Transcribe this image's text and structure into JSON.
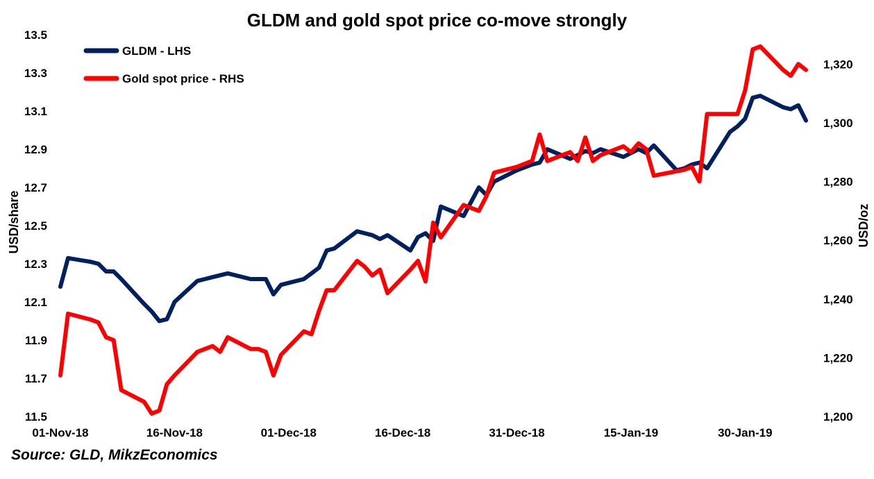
{
  "title": "GLDM and gold spot price co-move strongly",
  "source": "Source: GLD, MikzEconomics",
  "chart_data": {
    "type": "line",
    "title": "GLDM and gold spot price co-move strongly",
    "xlabel": "",
    "ylabel": "USD/share",
    "y2label": "USD/oz",
    "ylim": [
      11.5,
      13.5
    ],
    "y2lim": [
      1200,
      1330
    ],
    "yticks": [
      "11.5",
      "11.7",
      "11.9",
      "12.1",
      "12.3",
      "12.5",
      "12.7",
      "12.9",
      "13.1",
      "13.3",
      "13.5"
    ],
    "y2ticks": [
      "1,200",
      "1,220",
      "1,240",
      "1,260",
      "1,280",
      "1,300",
      "1,320"
    ],
    "xtick_labels": [
      "01-Nov-18",
      "16-Nov-18",
      "01-Dec-18",
      "16-Dec-18",
      "31-Dec-18",
      "15-Jan-19",
      "30-Jan-19"
    ],
    "x_start": "2018-11-01",
    "x_end": "2019-02-07",
    "legend_position": "top-left",
    "grid": false,
    "series": [
      {
        "name": "GLDM - LHS",
        "axis": "left",
        "color": "#002060",
        "points": [
          [
            "2018-11-01",
            12.18
          ],
          [
            "2018-11-02",
            12.33
          ],
          [
            "2018-11-05",
            12.31
          ],
          [
            "2018-11-06",
            12.3
          ],
          [
            "2018-11-07",
            12.26
          ],
          [
            "2018-11-08",
            12.26
          ],
          [
            "2018-11-09",
            12.22
          ],
          [
            "2018-11-12",
            12.09
          ],
          [
            "2018-11-13",
            12.05
          ],
          [
            "2018-11-14",
            12.0
          ],
          [
            "2018-11-15",
            12.01
          ],
          [
            "2018-11-16",
            12.1
          ],
          [
            "2018-11-19",
            12.21
          ],
          [
            "2018-11-20",
            12.22
          ],
          [
            "2018-11-21",
            12.23
          ],
          [
            "2018-11-23",
            12.25
          ],
          [
            "2018-11-26",
            12.22
          ],
          [
            "2018-11-27",
            12.22
          ],
          [
            "2018-11-28",
            12.22
          ],
          [
            "2018-11-29",
            12.14
          ],
          [
            "2018-11-30",
            12.19
          ],
          [
            "2018-12-03",
            12.22
          ],
          [
            "2018-12-04",
            12.25
          ],
          [
            "2018-12-05",
            12.28
          ],
          [
            "2018-12-06",
            12.37
          ],
          [
            "2018-12-07",
            12.38
          ],
          [
            "2018-12-10",
            12.47
          ],
          [
            "2018-12-11",
            12.46
          ],
          [
            "2018-12-12",
            12.45
          ],
          [
            "2018-12-13",
            12.43
          ],
          [
            "2018-12-14",
            12.45
          ],
          [
            "2018-12-17",
            12.37
          ],
          [
            "2018-12-18",
            12.44
          ],
          [
            "2018-12-19",
            12.46
          ],
          [
            "2018-12-20",
            12.42
          ],
          [
            "2018-12-21",
            12.6
          ],
          [
            "2018-12-24",
            12.55
          ],
          [
            "2018-12-26",
            12.7
          ],
          [
            "2018-12-27",
            12.66
          ],
          [
            "2018-12-28",
            12.73
          ],
          [
            "2018-12-31",
            12.79
          ],
          [
            "2019-01-02",
            12.82
          ],
          [
            "2019-01-03",
            12.83
          ],
          [
            "2019-01-04",
            12.9
          ],
          [
            "2019-01-07",
            12.85
          ],
          [
            "2019-01-08",
            12.87
          ],
          [
            "2019-01-09",
            12.89
          ],
          [
            "2019-01-10",
            12.88
          ],
          [
            "2019-01-11",
            12.9
          ],
          [
            "2019-01-14",
            12.86
          ],
          [
            "2019-01-15",
            12.88
          ],
          [
            "2019-01-16",
            12.9
          ],
          [
            "2019-01-17",
            12.88
          ],
          [
            "2019-01-18",
            12.92
          ],
          [
            "2019-01-21",
            12.79
          ],
          [
            "2019-01-22",
            12.8
          ],
          [
            "2019-01-23",
            12.82
          ],
          [
            "2019-01-24",
            12.83
          ],
          [
            "2019-01-25",
            12.8
          ],
          [
            "2019-01-28",
            12.99
          ],
          [
            "2019-01-29",
            13.02
          ],
          [
            "2019-01-30",
            13.06
          ],
          [
            "2019-01-31",
            13.17
          ],
          [
            "2019-02-01",
            13.18
          ],
          [
            "2019-02-04",
            13.12
          ],
          [
            "2019-02-05",
            13.11
          ],
          [
            "2019-02-06",
            13.13
          ],
          [
            "2019-02-07",
            13.05
          ]
        ]
      },
      {
        "name": "Gold spot price - RHS",
        "axis": "right",
        "color": "#ff0000",
        "points": [
          [
            "2018-11-01",
            1214
          ],
          [
            "2018-11-02",
            1235
          ],
          [
            "2018-11-05",
            1233
          ],
          [
            "2018-11-06",
            1232
          ],
          [
            "2018-11-07",
            1227
          ],
          [
            "2018-11-08",
            1226
          ],
          [
            "2018-11-09",
            1209
          ],
          [
            "2018-11-12",
            1205
          ],
          [
            "2018-11-13",
            1201
          ],
          [
            "2018-11-14",
            1202
          ],
          [
            "2018-11-15",
            1211
          ],
          [
            "2018-11-16",
            1214
          ],
          [
            "2018-11-19",
            1222
          ],
          [
            "2018-11-20",
            1223
          ],
          [
            "2018-11-21",
            1224
          ],
          [
            "2018-11-22",
            1222
          ],
          [
            "2018-11-23",
            1227
          ],
          [
            "2018-11-26",
            1223
          ],
          [
            "2018-11-27",
            1223
          ],
          [
            "2018-11-28",
            1222
          ],
          [
            "2018-11-29",
            1214
          ],
          [
            "2018-11-30",
            1221
          ],
          [
            "2018-12-03",
            1229
          ],
          [
            "2018-12-04",
            1228
          ],
          [
            "2018-12-05",
            1236
          ],
          [
            "2018-12-06",
            1243
          ],
          [
            "2018-12-07",
            1243
          ],
          [
            "2018-12-10",
            1253
          ],
          [
            "2018-12-11",
            1251
          ],
          [
            "2018-12-12",
            1248
          ],
          [
            "2018-12-13",
            1250
          ],
          [
            "2018-12-14",
            1242
          ],
          [
            "2018-12-17",
            1250
          ],
          [
            "2018-12-18",
            1253
          ],
          [
            "2018-12-19",
            1246
          ],
          [
            "2018-12-20",
            1266
          ],
          [
            "2018-12-21",
            1261
          ],
          [
            "2018-12-24",
            1272
          ],
          [
            "2018-12-26",
            1270
          ],
          [
            "2018-12-27",
            1275
          ],
          [
            "2018-12-28",
            1283
          ],
          [
            "2018-12-31",
            1285
          ],
          [
            "2019-01-02",
            1287
          ],
          [
            "2019-01-03",
            1296
          ],
          [
            "2019-01-04",
            1287
          ],
          [
            "2019-01-07",
            1290
          ],
          [
            "2019-01-08",
            1287
          ],
          [
            "2019-01-09",
            1295
          ],
          [
            "2019-01-10",
            1287
          ],
          [
            "2019-01-11",
            1289
          ],
          [
            "2019-01-14",
            1292
          ],
          [
            "2019-01-15",
            1290
          ],
          [
            "2019-01-16",
            1293
          ],
          [
            "2019-01-17",
            1291
          ],
          [
            "2019-01-18",
            1282
          ],
          [
            "2019-01-22",
            1284
          ],
          [
            "2019-01-23",
            1285
          ],
          [
            "2019-01-24",
            1280
          ],
          [
            "2019-01-25",
            1303
          ],
          [
            "2019-01-28",
            1303
          ],
          [
            "2019-01-29",
            1303
          ],
          [
            "2019-01-30",
            1311
          ],
          [
            "2019-01-31",
            1325
          ],
          [
            "2019-02-01",
            1326
          ],
          [
            "2019-02-04",
            1318
          ],
          [
            "2019-02-05",
            1316
          ],
          [
            "2019-02-06",
            1320
          ],
          [
            "2019-02-07",
            1318
          ]
        ]
      }
    ]
  }
}
